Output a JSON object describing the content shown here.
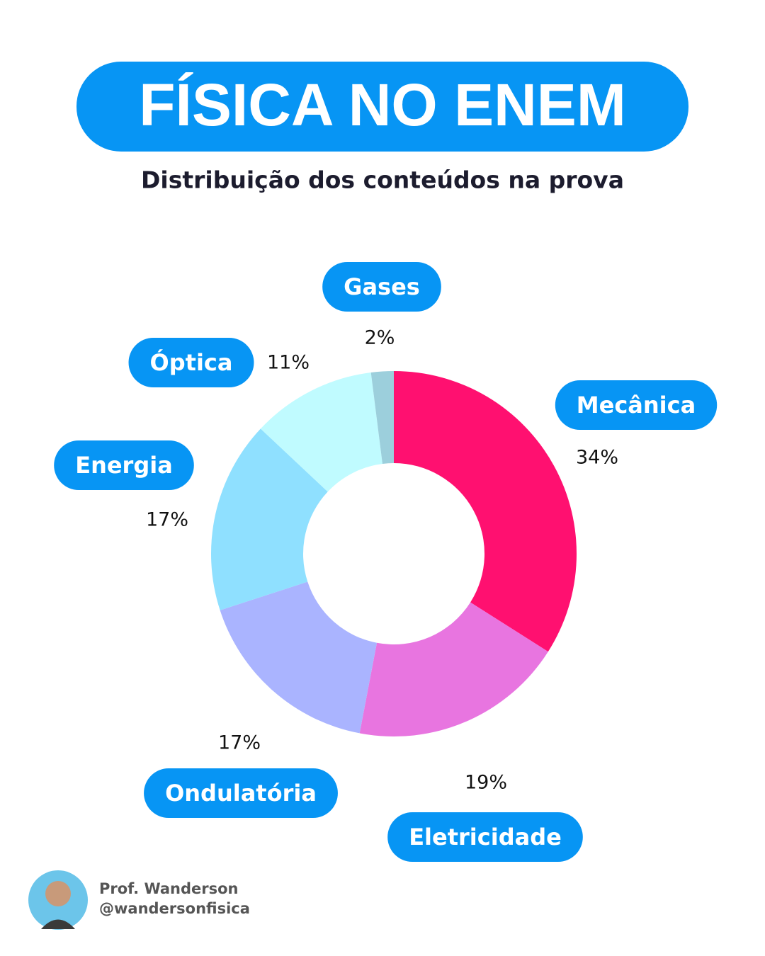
{
  "chart_data": {
    "type": "donut",
    "title": "FÍSICA NO ENEM",
    "subtitle": "Distribuição dos conteúdos na prova",
    "categories": [
      "Mecânica",
      "Eletricidade",
      "Ondulatória",
      "Energia",
      "Óptica",
      "Gases"
    ],
    "values": [
      34,
      19,
      17,
      17,
      11,
      2
    ],
    "value_labels": [
      "34%",
      "19%",
      "17%",
      "17%",
      "11%",
      "2%"
    ],
    "colors": [
      "#ff1070",
      "#e875e0",
      "#aab4ff",
      "#8fe0ff",
      "#c0fbff",
      "#9ccfdc"
    ]
  },
  "author": {
    "name": "Prof. Wanderson",
    "handle": "@wandersonfisica"
  }
}
